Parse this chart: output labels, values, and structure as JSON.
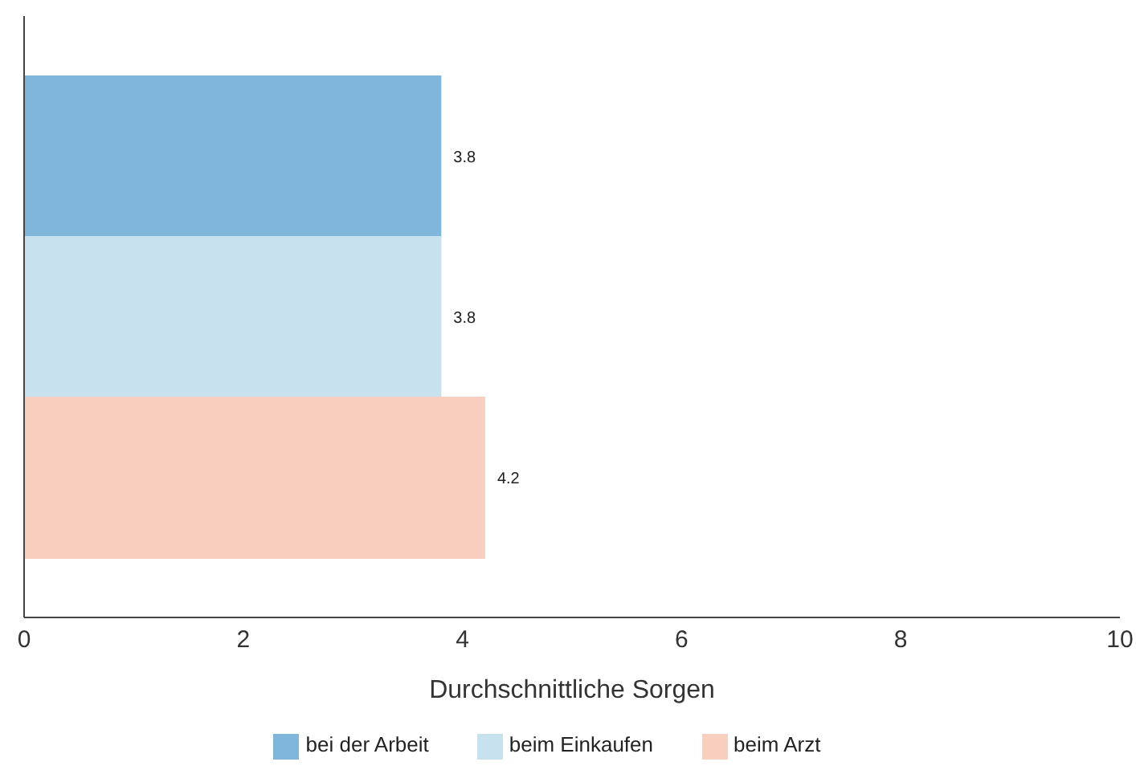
{
  "chart_data": {
    "type": "bar",
    "orientation": "horizontal",
    "xlabel": "Durchschnittliche Sorgen",
    "categories": [
      null
    ],
    "series": [
      {
        "name": "bei der Arbeit",
        "color": "#7fb6d9",
        "values": [
          3.8
        ]
      },
      {
        "name": "beim Einkaufen",
        "color": "#c7e1ee",
        "values": [
          3.8
        ]
      },
      {
        "name": "beim Arzt",
        "color": "#f8cfbf",
        "values": [
          4.2
        ]
      }
    ],
    "xlim": [
      0,
      10
    ],
    "xticks": [
      0,
      2,
      4,
      6,
      8,
      10
    ],
    "data_labels": true,
    "grid": false,
    "legend": "bottom"
  }
}
